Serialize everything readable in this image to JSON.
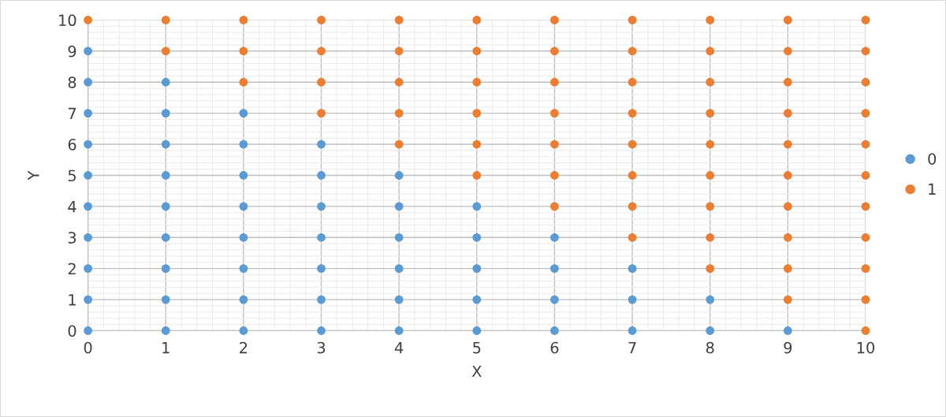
{
  "chart_data": {
    "type": "scatter",
    "xlabel": "X",
    "ylabel": "Y",
    "xlim": [
      0,
      10
    ],
    "ylim": [
      0,
      10
    ],
    "xticks": [
      0,
      1,
      2,
      3,
      4,
      5,
      6,
      7,
      8,
      9,
      10
    ],
    "yticks": [
      0,
      1,
      2,
      3,
      4,
      5,
      6,
      7,
      8,
      9,
      10
    ],
    "grid": true,
    "legend": "right",
    "marker": "circle",
    "series": [
      {
        "name": "0",
        "color": "#5b9bd5",
        "x": [
          0,
          0,
          0,
          0,
          0,
          0,
          0,
          0,
          0,
          0,
          1,
          1,
          1,
          1,
          1,
          1,
          1,
          1,
          1,
          2,
          2,
          2,
          2,
          2,
          2,
          2,
          2,
          3,
          3,
          3,
          3,
          3,
          3,
          3,
          4,
          4,
          4,
          4,
          4,
          4,
          5,
          5,
          5,
          5,
          5,
          6,
          6,
          6,
          6,
          7,
          7,
          7,
          8,
          8,
          9
        ],
        "values": [
          0,
          1,
          2,
          3,
          4,
          5,
          6,
          7,
          8,
          9,
          0,
          1,
          2,
          3,
          4,
          5,
          6,
          7,
          8,
          0,
          1,
          2,
          3,
          4,
          5,
          6,
          7,
          0,
          1,
          2,
          3,
          4,
          5,
          6,
          0,
          1,
          2,
          3,
          4,
          5,
          0,
          1,
          2,
          3,
          4,
          0,
          1,
          2,
          3,
          0,
          1,
          2,
          0,
          1,
          0
        ]
      },
      {
        "name": "1",
        "color": "#ed7d31",
        "x": [
          0,
          1,
          1,
          2,
          2,
          2,
          3,
          3,
          3,
          3,
          4,
          4,
          4,
          4,
          4,
          5,
          5,
          5,
          5,
          5,
          5,
          6,
          6,
          6,
          6,
          6,
          6,
          6,
          7,
          7,
          7,
          7,
          7,
          7,
          7,
          7,
          8,
          8,
          8,
          8,
          8,
          8,
          8,
          8,
          8,
          9,
          9,
          9,
          9,
          9,
          9,
          9,
          9,
          9,
          9,
          10,
          10,
          10,
          10,
          10,
          10,
          10,
          10,
          10,
          10,
          10
        ],
        "values": [
          10,
          9,
          10,
          8,
          9,
          10,
          7,
          8,
          9,
          10,
          6,
          7,
          8,
          9,
          10,
          5,
          6,
          7,
          8,
          9,
          10,
          4,
          5,
          6,
          7,
          8,
          9,
          10,
          3,
          4,
          5,
          6,
          7,
          8,
          9,
          10,
          2,
          3,
          4,
          5,
          6,
          7,
          8,
          9,
          10,
          1,
          2,
          3,
          4,
          5,
          6,
          7,
          8,
          9,
          10,
          0,
          1,
          2,
          3,
          4,
          5,
          6,
          7,
          8,
          9,
          10
        ]
      }
    ]
  }
}
